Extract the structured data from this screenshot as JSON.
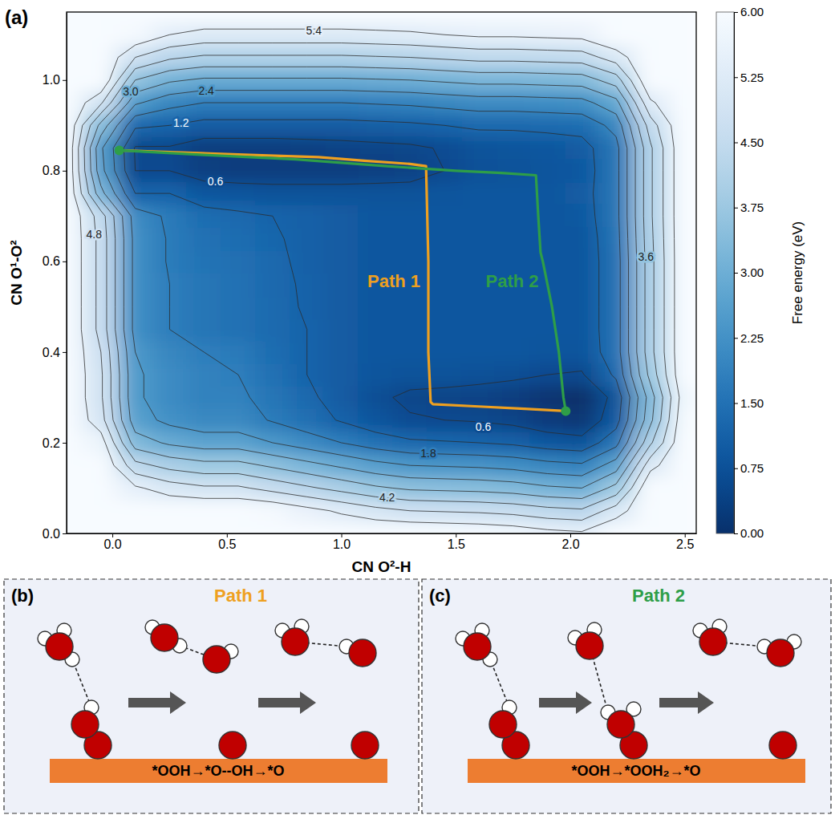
{
  "chart_data": {
    "type": "contour",
    "panel": "(a)",
    "x_label": "CN O²-H",
    "y_label": "CN O¹-O²",
    "xlim": [
      -0.2,
      2.55
    ],
    "ylim": [
      0,
      1.15
    ],
    "xticks": [
      {
        "value": 0,
        "label": "0.0"
      },
      0.5,
      {
        "value": 1,
        "label": "1.0"
      },
      1.5,
      {
        "value": 2,
        "label": "2.0"
      },
      2.5
    ],
    "yticks": [
      {
        "value": 0,
        "label": "0.0"
      },
      0.2,
      0.4,
      0.6,
      0.8,
      {
        "value": 1,
        "label": "1.0"
      }
    ],
    "x": [
      -0.2,
      -0.05,
      0.1,
      0.25,
      0.4,
      0.55,
      0.7,
      0.85,
      1.0,
      1.15,
      1.3,
      1.45,
      1.6,
      1.75,
      1.9,
      2.05,
      2.2,
      2.35,
      2.5
    ],
    "y": [
      0,
      0.05,
      0.1,
      0.15,
      0.2,
      0.25,
      0.3,
      0.35,
      0.4,
      0.45,
      0.5,
      0.55,
      0.6,
      0.65,
      0.7,
      0.75,
      0.8,
      0.85,
      0.9,
      0.95,
      1.0,
      1.05,
      1.1,
      1.15
    ],
    "z": [
      [
        6,
        6,
        6,
        6,
        6,
        6,
        6,
        6,
        6,
        6,
        6,
        5.95,
        5.9,
        5.8,
        5.6,
        5.5,
        6,
        6,
        6
      ],
      [
        6,
        6,
        6,
        6,
        6,
        6,
        5.9,
        5.6,
        5.3,
        5.0,
        4.8,
        4.75,
        4.7,
        4.6,
        4.4,
        4.3,
        5.1,
        6,
        6
      ],
      [
        6,
        6,
        5.5,
        5.1,
        4.9,
        4.9,
        4.6,
        4.3,
        4.0,
        3.7,
        3.5,
        3.45,
        3.4,
        3.3,
        3.1,
        3.0,
        3.8,
        6,
        6
      ],
      [
        6,
        6,
        4.4,
        4.0,
        3.8,
        3.8,
        3.5,
        3.2,
        2.9,
        2.6,
        2.4,
        2.35,
        2.3,
        2.2,
        2.0,
        1.9,
        2.7,
        5.2,
        6
      ],
      [
        6,
        5.7,
        3.3,
        2.9,
        2.7,
        2.7,
        2.4,
        2.1,
        1.8,
        1.5,
        1.3,
        1.25,
        1.2,
        1.1,
        0.9,
        0.8,
        1.6,
        4.1,
        6
      ],
      [
        6,
        5.05,
        2.65,
        2.25,
        2.05,
        2.05,
        1.75,
        1.45,
        1.15,
        0.85,
        0.65,
        0.6,
        0.55,
        0.45,
        0.25,
        0.15,
        0.95,
        3.45,
        5.95
      ],
      [
        6,
        4.9,
        2.5,
        2.1,
        1.9,
        1.9,
        1.6,
        1.3,
        1.0,
        0.7,
        0.5,
        0.45,
        0.4,
        0.3,
        0.1,
        0,
        0.8,
        3.3,
        5.8
      ],
      [
        6,
        4.9,
        2.5,
        2.1,
        1.9,
        1.8,
        1.5,
        1.2,
        1.0,
        0.85,
        0.8,
        0.8,
        0.75,
        0.7,
        0.6,
        0.55,
        1.3,
        3.8,
        6
      ],
      [
        6,
        4.8,
        2.4,
        2.0,
        1.8,
        1.7,
        1.4,
        1.2,
        1.0,
        0.9,
        0.9,
        0.9,
        0.9,
        0.9,
        0.85,
        0.85,
        1.5,
        4.0,
        6
      ],
      [
        6,
        4.6,
        2.2,
        1.8,
        1.6,
        1.5,
        1.35,
        1.2,
        1.0,
        0.9,
        0.9,
        0.9,
        0.9,
        0.9,
        0.9,
        0.9,
        1.5,
        4.0,
        6
      ],
      [
        6,
        4.6,
        2.2,
        1.8,
        1.6,
        1.5,
        1.35,
        1.15,
        1.0,
        0.9,
        0.9,
        0.9,
        0.9,
        0.9,
        0.9,
        0.9,
        1.5,
        4.0,
        6
      ],
      [
        6,
        4.6,
        2.2,
        1.8,
        1.6,
        1.5,
        1.3,
        1.15,
        1.0,
        0.9,
        0.9,
        0.9,
        0.9,
        0.9,
        0.9,
        0.9,
        1.5,
        4.0,
        6
      ],
      [
        6,
        4.6,
        2.2,
        1.75,
        1.55,
        1.45,
        1.3,
        1.1,
        1.0,
        0.9,
        0.9,
        0.9,
        0.9,
        0.9,
        0.9,
        0.9,
        1.5,
        4.0,
        6
      ],
      [
        6,
        4.6,
        2.2,
        1.75,
        1.5,
        1.4,
        1.25,
        1.1,
        1.0,
        0.9,
        0.9,
        0.9,
        0.9,
        0.9,
        0.9,
        0.9,
        1.55,
        4.05,
        6
      ],
      [
        6,
        4.5,
        2.1,
        1.7,
        1.4,
        1.3,
        1.2,
        1.1,
        1.0,
        0.9,
        0.9,
        0.9,
        0.9,
        0.9,
        0.9,
        0.95,
        1.6,
        4.1,
        6
      ],
      [
        6,
        3.2,
        1.2,
        1.2,
        0.9,
        0.85,
        0.8,
        0.8,
        0.8,
        0.8,
        0.8,
        0.85,
        0.9,
        0.9,
        0.9,
        1.0,
        1.6,
        4.1,
        6
      ],
      [
        6,
        2.6,
        0.6,
        0.6,
        0.35,
        0.3,
        0.3,
        0.3,
        0.3,
        0.35,
        0.4,
        0.6,
        0.75,
        0.8,
        0.85,
        0.95,
        1.6,
        4.1,
        6
      ],
      [
        6,
        2.5,
        0.55,
        0.55,
        0.3,
        0.3,
        0.3,
        0.35,
        0.4,
        0.45,
        0.5,
        0.65,
        0.8,
        0.85,
        0.9,
        1.0,
        1.6,
        4.1,
        6
      ],
      [
        6,
        3.4,
        1.3,
        1.2,
        1.0,
        1.0,
        1.0,
        1.0,
        1.0,
        1.05,
        1.1,
        1.2,
        1.3,
        1.3,
        1.35,
        1.4,
        2.0,
        4.5,
        6
      ],
      [
        6,
        4.9,
        2.5,
        2.0,
        1.8,
        1.8,
        1.8,
        1.8,
        1.8,
        1.85,
        1.9,
        2.0,
        2.1,
        2.1,
        2.15,
        2.2,
        2.8,
        5.3,
        6
      ],
      [
        6,
        6,
        3.6,
        3.1,
        2.9,
        2.9,
        2.9,
        2.9,
        2.9,
        2.95,
        3.0,
        3.1,
        3.2,
        3.2,
        3.25,
        3.3,
        3.9,
        6,
        6
      ],
      [
        6,
        6,
        4.8,
        4.3,
        4.1,
        4.1,
        4.1,
        4.1,
        4.1,
        4.15,
        4.2,
        4.3,
        4.4,
        4.4,
        4.45,
        4.5,
        5.1,
        6,
        6
      ],
      [
        6,
        6,
        5.9,
        5.4,
        5.2,
        5.2,
        5.2,
        5.2,
        5.2,
        5.25,
        5.3,
        5.4,
        5.5,
        5.5,
        5.55,
        5.6,
        6,
        6,
        6
      ],
      [
        6,
        6,
        6,
        6,
        6,
        6,
        6,
        6,
        6,
        6,
        6,
        6,
        6,
        6,
        6,
        6,
        6,
        6,
        6
      ]
    ],
    "contour_levels": [
      0.6,
      1.2,
      1.8,
      2.4,
      3,
      3.6,
      4.2,
      4.8,
      5.4
    ],
    "contour_labels": [
      {
        "value": 5.4,
        "x": 0.88,
        "y": 1.11
      },
      {
        "value": 3,
        "label": "3.0",
        "x": 0.08,
        "y": 0.975
      },
      {
        "value": 2.4,
        "x": 0.41,
        "y": 0.977
      },
      {
        "value": 1.2,
        "x": 0.3,
        "y": 0.905
      },
      {
        "value": 0.6,
        "x": 0.45,
        "y": 0.777
      },
      {
        "value": 4.8,
        "x": -0.08,
        "y": 0.66
      },
      {
        "value": 3.6,
        "x": 2.33,
        "y": 0.61
      },
      {
        "value": 0.6,
        "x": 1.62,
        "y": 0.235
      },
      {
        "value": 1.8,
        "x": 1.38,
        "y": 0.177
      },
      {
        "value": 4.2,
        "x": 1.2,
        "y": 0.08
      }
    ],
    "colorbar": {
      "label": "Free energy (eV)",
      "range": [
        0,
        6
      ],
      "ticks": [
        {
          "value": 0,
          "label": "0.00"
        },
        0.75,
        {
          "value": 1.5,
          "label": "1.50"
        },
        2.25,
        {
          "value": 3,
          "label": "3.00"
        },
        3.75,
        {
          "value": 4.5,
          "label": "4.50"
        },
        5.25,
        {
          "value": 6,
          "label": "6.00"
        }
      ]
    },
    "series": [
      {
        "name": "Path 1",
        "color": "#eea020",
        "x": [
          0.03,
          0.3,
          0.6,
          0.9,
          1.1,
          1.3,
          1.37,
          1.38,
          1.38,
          1.39,
          1.4,
          1.6,
          1.8,
          1.98
        ],
        "y": [
          0.845,
          0.84,
          0.835,
          0.83,
          0.822,
          0.815,
          0.81,
          0.6,
          0.4,
          0.29,
          0.285,
          0.28,
          0.275,
          0.27
        ]
      },
      {
        "name": "Path 2",
        "color": "#2e9e48",
        "x": [
          0.03,
          0.4,
          0.8,
          1.2,
          1.5,
          1.7,
          1.85,
          1.86,
          1.87,
          1.88,
          1.92,
          1.95,
          1.97,
          1.98
        ],
        "y": [
          0.845,
          0.835,
          0.825,
          0.81,
          0.8,
          0.795,
          0.79,
          0.7,
          0.62,
          0.6,
          0.5,
          0.4,
          0.3,
          0.27
        ]
      }
    ],
    "points": {
      "x": [
        0.03,
        1.98
      ],
      "y": [
        0.845,
        0.27
      ],
      "color": "#2e9e48"
    }
  },
  "diagrams": [
    {
      "letter": "(b)",
      "title": "Path 1",
      "reaction": "*OOH→*O--OH→*O",
      "color": "#eea020"
    },
    {
      "letter": "(c)",
      "title": "Path 2",
      "reaction": "*OOH→*OOH₂→*O",
      "color": "#2e9e48"
    }
  ]
}
